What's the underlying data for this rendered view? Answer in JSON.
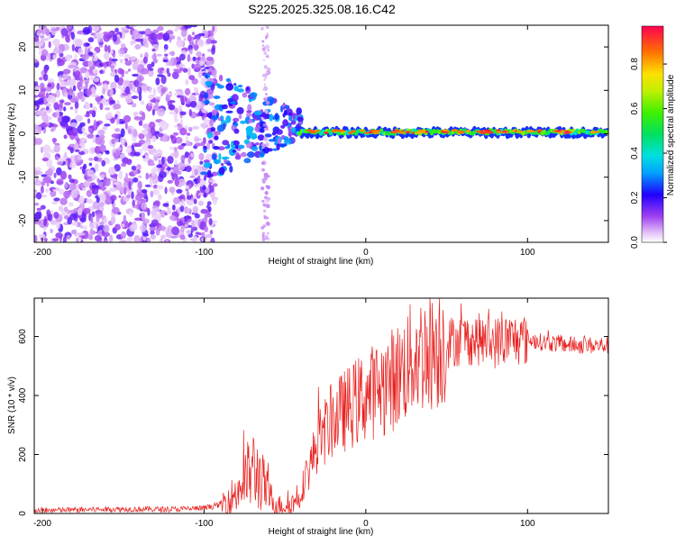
{
  "figure": {
    "title": "S225.2025.325.08.16.C42"
  },
  "chart_data": [
    {
      "type": "heatmap",
      "title": "S225.2025.325.08.16.C42",
      "xlabel": "Height of straight line (km)",
      "ylabel": "Frequency (Hz)",
      "xlim": [
        -205,
        150
      ],
      "ylim": [
        -25,
        25
      ],
      "xticks": [
        -200,
        -100,
        0,
        100
      ],
      "yticks": [
        -20,
        -10,
        0,
        10,
        20
      ],
      "colorbar": {
        "label": "Normalized spectral amplitude",
        "range": [
          0.0,
          0.97
        ],
        "ticks": [
          0.0,
          0.2,
          0.4,
          0.6,
          0.8
        ]
      },
      "description_points": {
        "noise_region_x": [
          -205,
          -95
        ],
        "transition_x": [
          -95,
          -40
        ],
        "ridge_x": [
          -40,
          150
        ],
        "ridge_frequency_hz": 0.5,
        "ridge_amplitude_peak": 0.95
      }
    },
    {
      "type": "line",
      "xlabel": "Height of straight line (km)",
      "ylabel": "SNR (10 * v/v)",
      "xlim": [
        -205,
        150
      ],
      "ylim": [
        0,
        730
      ],
      "xticks": [
        -200,
        -100,
        0,
        100
      ],
      "yticks": [
        0,
        200,
        400,
        600
      ],
      "series": [
        {
          "name": "SNR",
          "color": "#e8201e",
          "x": [
            -205,
            -180,
            -150,
            -120,
            -100,
            -90,
            -80,
            -75,
            -70,
            -65,
            -60,
            -55,
            -50,
            -45,
            -40,
            -35,
            -30,
            -20,
            -10,
            0,
            10,
            20,
            30,
            40,
            50,
            60,
            70,
            80,
            90,
            100,
            110,
            120,
            130,
            140,
            150
          ],
          "y": [
            10,
            12,
            15,
            14,
            18,
            30,
            70,
            110,
            150,
            120,
            60,
            30,
            25,
            35,
            80,
            150,
            240,
            320,
            360,
            400,
            430,
            470,
            530,
            560,
            580,
            590,
            590,
            580,
            590,
            590,
            580,
            575,
            570,
            570,
            570
          ]
        }
      ]
    }
  ]
}
